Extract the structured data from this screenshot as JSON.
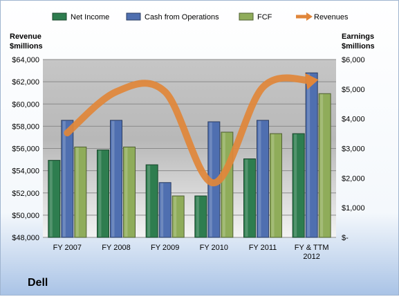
{
  "chart_data": {
    "type": "bar",
    "title": "Dell",
    "categories": [
      "FY 2007",
      "FY 2008",
      "FY 2009",
      "FY 2010",
      "FY 2011",
      "FY & TTM 2012"
    ],
    "series": [
      {
        "name": "Net Income",
        "axis": "right",
        "color": "#2e7d4f",
        "values": [
          2600,
          2950,
          2450,
          1400,
          2650,
          3500
        ]
      },
      {
        "name": "Cash from Operations",
        "axis": "right",
        "color": "#4f6fb0",
        "values": [
          3950,
          3950,
          1850,
          3900,
          3950,
          5550
        ]
      },
      {
        "name": "FCF",
        "axis": "right",
        "color": "#8fac5a",
        "values": [
          3050,
          3050,
          1400,
          3550,
          3500,
          4850
        ]
      },
      {
        "name": "Revenues",
        "axis": "left",
        "type": "line",
        "color": "#e0863a",
        "values": [
          57400,
          61100,
          61100,
          52900,
          61500,
          62100
        ]
      }
    ],
    "left_axis": {
      "label_line1": "Revenue",
      "label_line2": "$millions",
      "min": 48000,
      "max": 64000,
      "step": 2000,
      "ticks": [
        "$48,000",
        "$50,000",
        "$52,000",
        "$54,000",
        "$56,000",
        "$58,000",
        "$60,000",
        "$62,000",
        "$64,000"
      ]
    },
    "right_axis": {
      "label_line1": "Earnings",
      "label_line2": "$millions",
      "min": 0,
      "max": 6000,
      "step": 1000,
      "ticks": [
        "$-",
        "$1,000",
        "$2,000",
        "$3,000",
        "$4,000",
        "$5,000",
        "$6,000"
      ]
    },
    "legend_position": "top",
    "grid": true
  }
}
